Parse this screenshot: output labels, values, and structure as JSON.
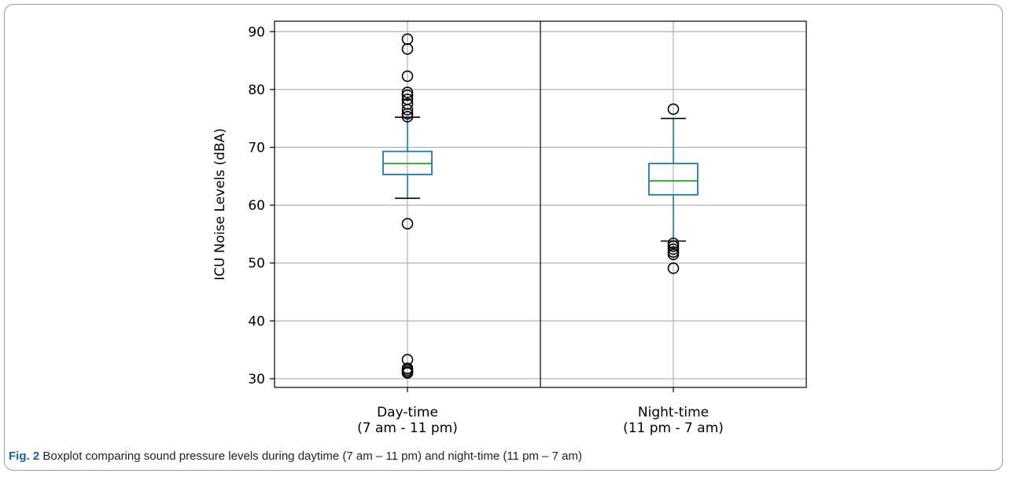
{
  "figure": {
    "label": "Fig. 2",
    "caption": "Boxplot comparing sound pressure levels during daytime (7 am – 11 pm) and night-time (11 pm – 7 am)"
  },
  "chart_data": {
    "type": "boxplot",
    "ylabel": "ICU Noise Levels (dBA)",
    "xlabel": "",
    "ylim": [
      28.5,
      91.8
    ],
    "yticks": [
      30,
      40,
      50,
      60,
      70,
      80,
      90
    ],
    "grid": true,
    "colors": {
      "box": "#1f77b4",
      "median": "#2ca02c",
      "whisker": "#1f77b4",
      "cap": "#000000",
      "flier": "#000000",
      "grid": "#b0b0b0"
    },
    "groups": [
      {
        "label_line1": "Day-time",
        "label_line2": "(7 am - 11 pm)",
        "whisker_low": 61.2,
        "q1": 65.3,
        "median": 67.2,
        "q3": 69.3,
        "whisker_high": 75.2,
        "outliers": [
          88.7,
          87.0,
          82.3,
          79.5,
          79.0,
          78.3,
          77.5,
          76.5,
          75.8,
          75.3,
          56.8,
          33.3,
          31.8,
          31.5,
          31.2,
          31.0
        ]
      },
      {
        "label_line1": "Night-time",
        "label_line2": "(11 pm - 7 am)",
        "whisker_low": 53.8,
        "q1": 61.8,
        "median": 64.2,
        "q3": 67.2,
        "whisker_high": 75.0,
        "outliers": [
          76.6,
          53.4,
          52.9,
          52.4,
          51.9,
          51.5,
          49.1
        ]
      }
    ]
  }
}
